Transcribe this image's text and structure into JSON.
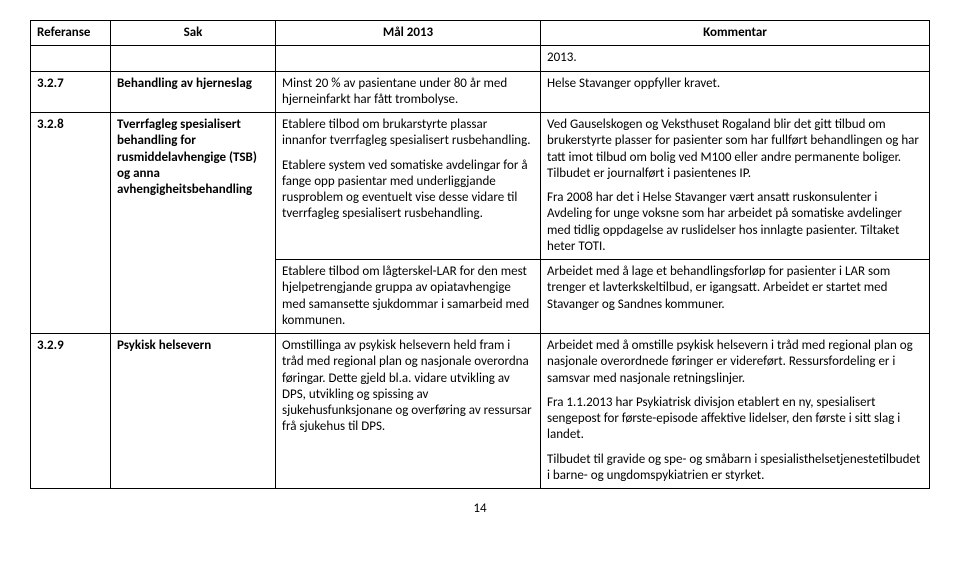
{
  "headers": {
    "referanse": "Referanse",
    "sak": "Sak",
    "mal": "Mål 2013",
    "kommentar": "Kommentar"
  },
  "row_2013": {
    "referanse": "",
    "sak": "",
    "mal": "",
    "kommentar": "2013."
  },
  "row_327": {
    "referanse": "3.2.7",
    "sak": "Behandling av hjerneslag",
    "mal": "Minst 20 % av pasientane under 80 år med hjerneinfarkt har fått trombolyse.",
    "kommentar": "Helse Stavanger oppfyller kravet."
  },
  "row_328": {
    "referanse": "3.2.8",
    "sak": "Tverrfagleg spesialisert behandling for rusmiddelavhengige (TSB) og anna avhengigheitsbehandling",
    "mal_p1": "Etablere tilbod om brukarstyrte plassar innanfor tverrfagleg spesialisert rusbehandling.",
    "mal_p2": "Etablere system ved somatiske avdelingar for å fange opp pasientar med underliggjande rusproblem og eventuelt vise desse vidare til tverrfagleg spesialisert rusbehandling.",
    "kom_p1": "Ved Gauselskogen og Veksthuset Rogaland blir det gitt tilbud om brukerstyrte plasser for pasienter som har fullført behandlingen og har tatt imot tilbud om bolig ved M100 eller andre permanente boliger. Tilbudet er journalført i pasientenes IP.",
    "kom_p2": "Fra 2008 har det i Helse Stavanger vært ansatt ruskonsulenter i Avdeling for unge voksne som har arbeidet på somatiske avdelinger med tidlig oppdagelse av ruslidelser hos innlagte pasienter. Tiltaket heter TOTI."
  },
  "row_328b": {
    "mal": "Etablere tilbod om lågterskel-LAR for den mest hjelpetrengjande gruppa av opiatavhengige med samansette sjukdommar i samarbeid med kommunen.",
    "kommentar": "Arbeidet med å lage et behandlingsforløp for pasienter i LAR som trenger et lavterkskeltilbud, er igangsatt. Arbeidet er startet med Stavanger og Sandnes kommuner."
  },
  "row_329": {
    "referanse": "3.2.9",
    "sak": "Psykisk helsevern",
    "mal": "Omstillinga av psykisk helsevern held fram i tråd med regional plan og nasjonale overordna føringar. Dette gjeld bl.a. vidare utvikling av DPS, utvikling og spissing av sjukehusfunksjonane og overføring av ressursar frå sjukehus til DPS.",
    "kom_p1": "Arbeidet med å omstille psykisk helsevern i tråd med regional plan og nasjonale overordnede føringer er videreført.  Ressursfordeling er i samsvar med nasjonale retningslinjer.",
    "kom_p2": "Fra 1.1.2013 har Psykiatrisk divisjon etablert en ny, spesialisert sengepost for første-episode affektive lidelser, den første i sitt slag i landet.",
    "kom_p3": "Tilbudet til gravide og spe- og småbarn i spesialisthelsetjenestetilbudet i barne- og ungdomspykiatrien er styrket."
  },
  "page_number": "14"
}
